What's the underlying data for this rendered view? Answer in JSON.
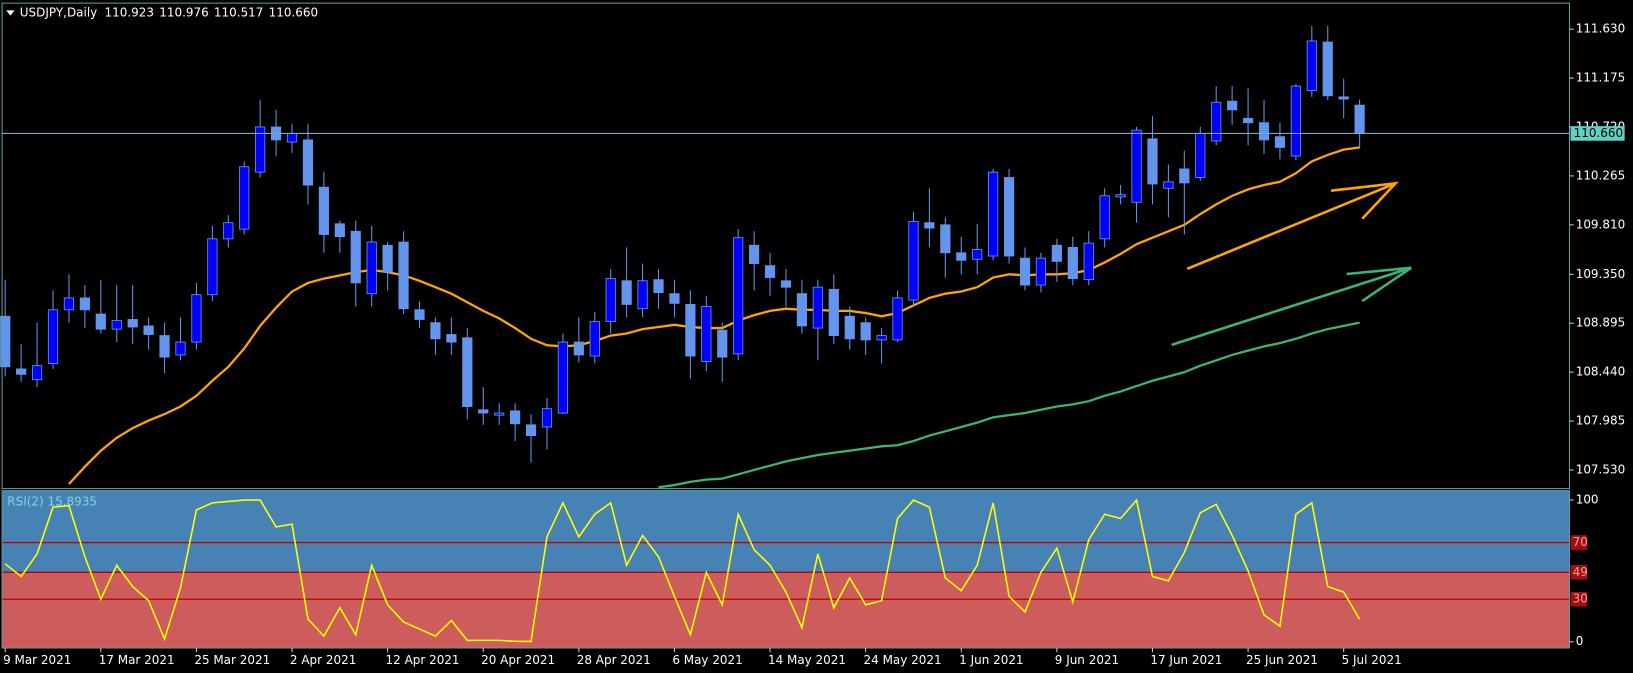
{
  "chart_data": [
    {
      "type": "candlestick",
      "title": "USDJPY,Daily",
      "ohlc_labels": [
        "110.923",
        "110.976",
        "110.517",
        "110.660"
      ],
      "categories": [
        "9 Mar 2021",
        null,
        null,
        null,
        null,
        null,
        "17 Mar 2021",
        null,
        null,
        null,
        null,
        null,
        "25 Mar 2021",
        null,
        null,
        null,
        null,
        null,
        "2 Apr 2021",
        null,
        null,
        null,
        null,
        null,
        "12 Apr 2021",
        null,
        null,
        null,
        null,
        null,
        "20 Apr 2021",
        null,
        null,
        null,
        null,
        null,
        "28 Apr 2021",
        null,
        null,
        null,
        null,
        null,
        "6 May 2021",
        null,
        null,
        null,
        null,
        null,
        "14 May 2021",
        null,
        null,
        null,
        null,
        null,
        "24 May 2021",
        null,
        null,
        null,
        null,
        null,
        "1 Jun 2021",
        null,
        null,
        null,
        null,
        null,
        "9 Jun 2021",
        null,
        null,
        null,
        null,
        null,
        "17 Jun 2021",
        null,
        null,
        null,
        null,
        null,
        "25 Jun 2021",
        null,
        null,
        null,
        null,
        null,
        "5 Jul 2021",
        null
      ],
      "open": [
        108.96,
        108.47,
        108.37,
        108.52,
        109.02,
        109.13,
        108.98,
        108.84,
        108.93,
        108.87,
        108.78,
        108.6,
        108.72,
        109.16,
        109.68,
        109.77,
        110.3,
        110.72,
        110.58,
        110.6,
        110.16,
        109.82,
        109.75,
        109.17,
        109.62,
        109.65,
        109.02,
        108.9,
        108.79,
        108.76,
        108.09,
        108.04,
        108.08,
        107.95,
        107.93,
        108.06,
        108.72,
        108.59,
        108.91,
        109.29,
        109.03,
        109.3,
        109.17,
        109.07,
        108.54,
        108.83,
        108.61,
        109.62,
        109.43,
        109.29,
        109.17,
        108.85,
        109.21,
        108.96,
        108.9,
        108.74,
        108.74,
        109.11,
        109.83,
        109.81,
        109.55,
        109.49,
        109.52,
        110.25,
        109.5,
        109.25,
        109.62,
        109.6,
        109.3,
        109.68,
        110.07,
        110.02,
        110.61,
        110.15,
        110.33,
        110.25,
        110.59,
        110.96,
        110.8,
        110.76,
        110.63,
        110.45,
        111.06,
        111.51,
        111.0,
        110.923
      ],
      "high": [
        109.3,
        108.7,
        108.9,
        109.2,
        109.35,
        109.25,
        109.3,
        109.25,
        109.25,
        108.95,
        108.9,
        108.95,
        109.27,
        109.8,
        109.9,
        110.4,
        110.97,
        110.88,
        110.75,
        110.75,
        110.3,
        109.85,
        109.85,
        109.8,
        109.65,
        109.75,
        109.1,
        108.95,
        108.95,
        108.85,
        108.3,
        108.15,
        108.15,
        108.05,
        108.2,
        108.8,
        108.95,
        109.0,
        109.4,
        109.6,
        109.45,
        109.4,
        109.3,
        109.2,
        109.15,
        108.9,
        109.77,
        109.75,
        109.55,
        109.4,
        109.3,
        109.3,
        109.35,
        109.05,
        108.95,
        108.85,
        109.2,
        109.93,
        110.15,
        109.88,
        109.7,
        109.82,
        110.33,
        110.33,
        109.6,
        109.55,
        109.68,
        109.7,
        109.75,
        110.15,
        110.18,
        110.72,
        110.82,
        110.37,
        110.5,
        110.72,
        111.1,
        111.1,
        111.08,
        110.97,
        110.76,
        111.12,
        111.66,
        111.66,
        111.17,
        110.976
      ],
      "low": [
        108.4,
        108.35,
        108.3,
        108.47,
        108.9,
        108.85,
        108.8,
        108.72,
        108.7,
        108.65,
        108.43,
        108.55,
        108.65,
        109.1,
        109.6,
        109.72,
        110.25,
        110.45,
        110.48,
        110.0,
        109.55,
        109.55,
        109.05,
        109.05,
        109.2,
        108.98,
        108.85,
        108.6,
        108.6,
        108.0,
        107.95,
        107.95,
        107.8,
        107.6,
        107.72,
        108.05,
        108.53,
        108.52,
        108.8,
        108.95,
        108.95,
        109.03,
        108.95,
        108.38,
        108.45,
        108.35,
        108.55,
        109.2,
        109.15,
        109.05,
        108.8,
        108.55,
        108.7,
        108.65,
        108.6,
        108.52,
        108.72,
        109.05,
        109.6,
        109.32,
        109.35,
        109.35,
        109.48,
        109.45,
        109.2,
        109.18,
        109.28,
        109.25,
        109.25,
        109.6,
        110.0,
        109.83,
        110.0,
        109.88,
        109.72,
        110.22,
        110.55,
        110.74,
        110.55,
        110.47,
        110.42,
        110.41,
        111.0,
        110.97,
        110.8,
        110.517
      ],
      "close": [
        108.49,
        108.42,
        108.5,
        109.02,
        109.13,
        109.02,
        108.84,
        108.92,
        108.86,
        108.79,
        108.58,
        108.72,
        109.16,
        109.68,
        109.83,
        110.35,
        110.72,
        110.6,
        110.66,
        110.18,
        109.72,
        109.7,
        109.27,
        109.65,
        109.37,
        109.03,
        108.93,
        108.75,
        108.72,
        108.12,
        108.06,
        108.06,
        107.96,
        107.85,
        108.1,
        108.72,
        108.6,
        108.91,
        109.31,
        109.07,
        109.29,
        109.18,
        109.08,
        108.59,
        109.05,
        108.58,
        109.69,
        109.45,
        109.32,
        109.23,
        108.87,
        109.23,
        108.78,
        108.75,
        108.74,
        108.78,
        109.13,
        109.84,
        109.78,
        109.55,
        109.48,
        109.58,
        110.3,
        109.52,
        109.25,
        109.5,
        109.47,
        109.31,
        109.64,
        110.08,
        110.09,
        110.69,
        110.19,
        110.21,
        110.2,
        110.66,
        110.95,
        110.88,
        110.76,
        110.6,
        110.53,
        111.1,
        111.52,
        111.01,
        110.98,
        110.66
      ],
      "bull_color": "#0000ff",
      "bear_color": "#6495ed",
      "series": [
        {
          "color": "#ffa500",
          "values": [
            null,
            null,
            null,
            null,
            107.4,
            107.56,
            107.71,
            107.83,
            107.92,
            107.99,
            108.05,
            108.12,
            108.22,
            108.36,
            108.49,
            108.66,
            108.87,
            109.04,
            109.19,
            109.27,
            109.31,
            109.34,
            109.37,
            109.39,
            109.37,
            109.34,
            109.29,
            109.23,
            109.17,
            109.09,
            109.01,
            108.94,
            108.85,
            108.75,
            108.69,
            108.68,
            108.69,
            108.73,
            108.78,
            108.8,
            108.84,
            108.86,
            108.88,
            108.86,
            108.85,
            108.85,
            108.92,
            108.97,
            109.01,
            109.03,
            109.02,
            109.02,
            109.01,
            109.01,
            108.99,
            108.96,
            108.99,
            109.06,
            109.13,
            109.17,
            109.19,
            109.23,
            109.32,
            109.35,
            109.34,
            109.35,
            109.35,
            109.36,
            109.39,
            109.46,
            109.54,
            109.63,
            109.69,
            109.75,
            109.81,
            109.91,
            110.0,
            110.08,
            110.14,
            110.18,
            110.21,
            110.29,
            110.4,
            110.46,
            110.51,
            110.53
          ]
        },
        {
          "color": "#3cb371",
          "values": [
            null,
            null,
            null,
            null,
            null,
            null,
            null,
            null,
            null,
            null,
            null,
            null,
            null,
            null,
            null,
            null,
            null,
            null,
            null,
            null,
            null,
            null,
            null,
            null,
            null,
            null,
            null,
            null,
            null,
            null,
            null,
            null,
            null,
            null,
            null,
            null,
            null,
            null,
            null,
            null,
            null,
            107.37,
            107.39,
            107.42,
            107.44,
            107.45,
            107.49,
            107.53,
            107.57,
            107.61,
            107.64,
            107.67,
            107.69,
            107.71,
            107.73,
            107.75,
            107.76,
            107.8,
            107.85,
            107.89,
            107.93,
            107.97,
            108.02,
            108.04,
            108.06,
            108.09,
            108.12,
            108.14,
            108.17,
            108.22,
            108.26,
            108.31,
            108.36,
            108.4,
            108.44,
            108.5,
            108.55,
            108.6,
            108.64,
            108.68,
            108.71,
            108.75,
            108.8,
            108.84,
            108.87,
            108.9
          ]
        }
      ],
      "last_price": {
        "value": 110.66,
        "label": "110.660"
      },
      "ylim": [
        107.357,
        111.872
      ],
      "yticks": [
        {
          "value": 107.53,
          "label": "107.530"
        },
        {
          "value": 107.985,
          "label": "107.985"
        },
        {
          "value": 108.44,
          "label": "108.440"
        },
        {
          "value": 108.895,
          "label": "108.895"
        },
        {
          "value": 109.35,
          "label": "109.350"
        },
        {
          "value": 109.81,
          "label": "109.810"
        },
        {
          "value": 110.265,
          "label": "110.265"
        },
        {
          "value": 110.72,
          "label": "110.720"
        },
        {
          "value": 111.175,
          "label": "111.175"
        },
        {
          "value": 111.63,
          "label": "111.630"
        }
      ]
    },
    {
      "type": "line",
      "title": "RSI(2) 15.8935",
      "color": "#ffff00",
      "values": [
        55,
        46,
        62,
        95,
        96,
        60,
        30,
        54,
        39,
        29,
        2,
        38,
        93,
        98,
        99,
        100,
        100,
        81,
        83,
        16,
        4,
        24,
        5,
        54,
        26,
        14,
        9,
        4,
        15,
        1,
        1,
        1,
        0.3,
        0.2,
        74,
        98,
        74,
        90,
        98,
        54,
        75,
        60,
        32,
        5,
        49,
        26,
        90,
        65,
        54,
        35,
        10,
        62,
        24,
        45,
        26,
        29,
        87,
        100,
        95,
        45,
        36,
        54,
        98,
        32,
        21,
        49,
        66,
        28,
        72,
        90,
        87,
        100,
        46,
        43,
        63,
        91,
        97,
        75,
        50,
        19,
        11,
        90,
        98,
        39,
        35,
        15.8935
      ],
      "ylim": [
        -4.4,
        106.6
      ],
      "yticks": [
        0,
        100
      ],
      "levels": [
        30,
        49,
        70
      ],
      "upper_color": "#4682b4",
      "lower_color": "#cd5c5c"
    }
  ]
}
